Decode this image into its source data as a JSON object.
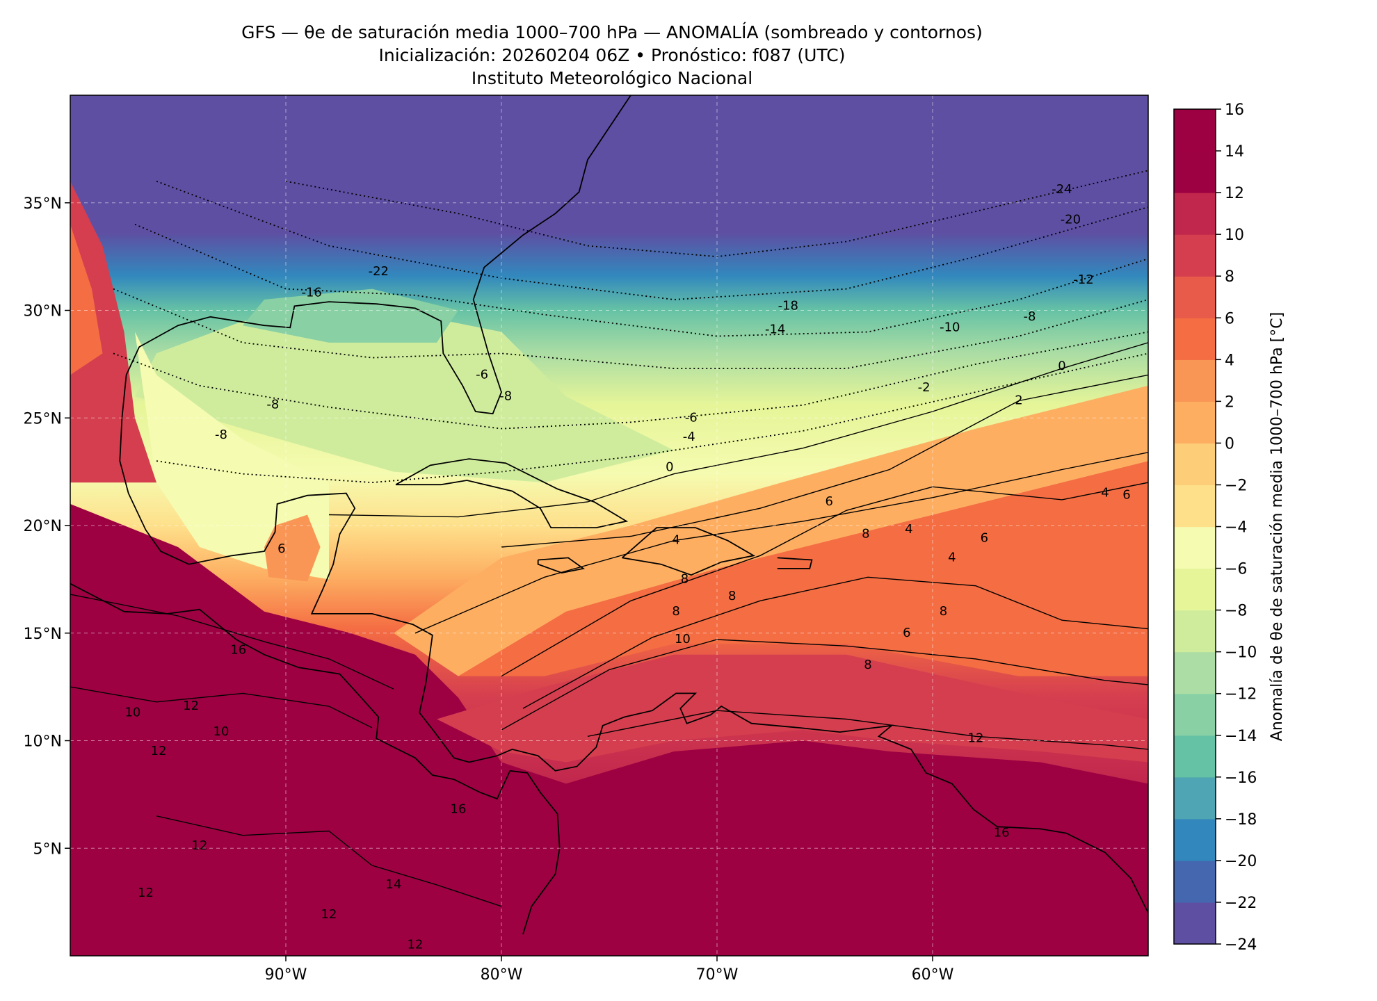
{
  "title": {
    "line1": "GFS — θe de saturación media 1000–700 hPa — ANOMALÍA (sombreado y contornos)",
    "line2": "Inicialización: 20260204 06Z   •   Pronóstico: f087 (UTC)",
    "line3": "Instituto Meteorológico Nacional"
  },
  "map": {
    "lon_range": [
      -100,
      -50
    ],
    "lat_range": [
      0,
      40
    ],
    "x_ticks": [
      {
        "value": -90,
        "label": "90°W"
      },
      {
        "value": -80,
        "label": "80°W"
      },
      {
        "value": -70,
        "label": "70°W"
      },
      {
        "value": -60,
        "label": "60°W"
      }
    ],
    "y_ticks": [
      {
        "value": 35,
        "label": "35°N"
      },
      {
        "value": 30,
        "label": "30°N"
      },
      {
        "value": 25,
        "label": "25°N"
      },
      {
        "value": 20,
        "label": "20°N"
      },
      {
        "value": 15,
        "label": "15°N"
      },
      {
        "value": 10,
        "label": "10°N"
      },
      {
        "value": 5,
        "label": "5°N"
      }
    ],
    "grid": true
  },
  "colorbar": {
    "label": "Anomalía de θe de saturación media 1000–700 hPa [°C]",
    "levels": [
      -24,
      -22,
      -20,
      -18,
      -16,
      -14,
      -12,
      -10,
      -8,
      -6,
      -4,
      -2,
      0,
      2,
      4,
      6,
      8,
      10,
      12,
      14,
      16
    ],
    "tick_labels": [
      "−24",
      "−22",
      "−20",
      "−18",
      "−16",
      "−14",
      "−12",
      "−10",
      "−8",
      "−6",
      "−4",
      "−2",
      "0",
      "2",
      "4",
      "6",
      "8",
      "10",
      "12",
      "14",
      "16"
    ],
    "colors": [
      "#5e4fa2",
      "#4467b0",
      "#3288bd",
      "#4fa5b3",
      "#66c2a5",
      "#89d0a4",
      "#abdda4",
      "#cfec9d",
      "#e6f598",
      "#f5fbb0",
      "#fee08b",
      "#fdcd78",
      "#fdae61",
      "#f99656",
      "#f46d43",
      "#e85a49",
      "#d53e4f",
      "#c1274d",
      "#9e0142",
      "#9e0142"
    ]
  },
  "contour_labels": [
    {
      "text": "-24",
      "lon": -54.0,
      "lat": 35.6
    },
    {
      "text": "-22",
      "lon": -85.7,
      "lat": 31.8
    },
    {
      "text": "-20",
      "lon": -53.6,
      "lat": 34.2
    },
    {
      "text": "-18",
      "lon": -66.7,
      "lat": 30.2
    },
    {
      "text": "-16",
      "lon": -88.8,
      "lat": 30.8
    },
    {
      "text": "-14",
      "lon": -67.3,
      "lat": 29.1
    },
    {
      "text": "-12",
      "lon": -53.0,
      "lat": 31.4
    },
    {
      "text": "-10",
      "lon": -59.2,
      "lat": 29.2
    },
    {
      "text": "-8",
      "lon": -55.5,
      "lat": 29.7
    },
    {
      "text": "-8",
      "lon": -93.0,
      "lat": 24.2
    },
    {
      "text": "-8",
      "lon": -90.6,
      "lat": 25.6
    },
    {
      "text": "-8",
      "lon": -79.8,
      "lat": 26.0
    },
    {
      "text": "-6",
      "lon": -80.9,
      "lat": 27.0
    },
    {
      "text": "-6",
      "lon": -71.2,
      "lat": 25.0
    },
    {
      "text": "-4",
      "lon": -71.3,
      "lat": 24.1
    },
    {
      "text": "-2",
      "lon": -60.4,
      "lat": 26.4
    },
    {
      "text": "0",
      "lon": -54.0,
      "lat": 27.4
    },
    {
      "text": "0",
      "lon": -72.2,
      "lat": 22.7
    },
    {
      "text": "2",
      "lon": -56.0,
      "lat": 25.8
    },
    {
      "text": "4",
      "lon": -71.9,
      "lat": 19.3
    },
    {
      "text": "4",
      "lon": -59.1,
      "lat": 18.5
    },
    {
      "text": "4",
      "lon": -52.0,
      "lat": 21.5
    },
    {
      "text": "4",
      "lon": -61.1,
      "lat": 19.8
    },
    {
      "text": "6",
      "lon": -90.2,
      "lat": 18.9
    },
    {
      "text": "6",
      "lon": -64.8,
      "lat": 21.1
    },
    {
      "text": "6",
      "lon": -57.6,
      "lat": 19.4
    },
    {
      "text": "6",
      "lon": -51.0,
      "lat": 21.4
    },
    {
      "text": "6",
      "lon": -61.2,
      "lat": 15.0
    },
    {
      "text": "8",
      "lon": -63.1,
      "lat": 19.6
    },
    {
      "text": "8",
      "lon": -71.9,
      "lat": 16.0
    },
    {
      "text": "8",
      "lon": -69.3,
      "lat": 16.7
    },
    {
      "text": "8",
      "lon": -71.5,
      "lat": 17.5
    },
    {
      "text": "8",
      "lon": -59.5,
      "lat": 16.0
    },
    {
      "text": "8",
      "lon": -63.0,
      "lat": 13.5
    },
    {
      "text": "10",
      "lon": -71.6,
      "lat": 14.7
    },
    {
      "text": "10",
      "lon": -93.0,
      "lat": 10.4
    },
    {
      "text": "10",
      "lon": -97.1,
      "lat": 11.3
    },
    {
      "text": "12",
      "lon": -58.0,
      "lat": 10.1
    },
    {
      "text": "12",
      "lon": -94.4,
      "lat": 11.6
    },
    {
      "text": "12",
      "lon": -95.9,
      "lat": 9.5
    },
    {
      "text": "12",
      "lon": -94.0,
      "lat": 5.1
    },
    {
      "text": "12",
      "lon": -96.5,
      "lat": 2.9
    },
    {
      "text": "12",
      "lon": -88.0,
      "lat": 1.9
    },
    {
      "text": "12",
      "lon": -84.0,
      "lat": 0.5
    },
    {
      "text": "14",
      "lon": -85.0,
      "lat": 3.3
    },
    {
      "text": "16",
      "lon": -92.2,
      "lat": 14.2
    },
    {
      "text": "16",
      "lon": -82.0,
      "lat": 6.8
    },
    {
      "text": "16",
      "lon": -56.8,
      "lat": 5.7
    }
  ]
}
